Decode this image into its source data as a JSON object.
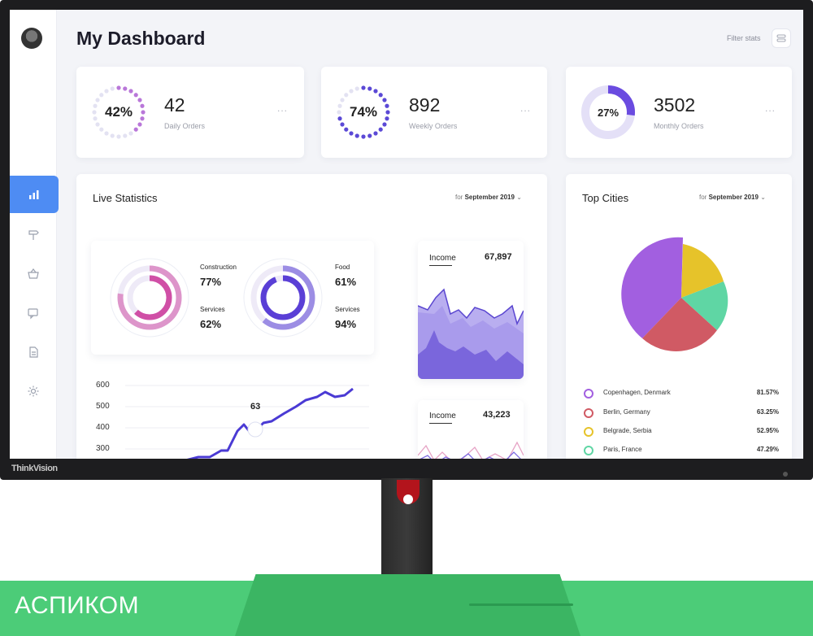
{
  "dashboard": {
    "title": "My Dashboard",
    "filter_label": "Filter stats"
  },
  "sidebar": {
    "items": [
      {
        "icon": "bar-chart-icon",
        "active": true
      },
      {
        "icon": "signpost-icon",
        "active": false
      },
      {
        "icon": "basket-icon",
        "active": false
      },
      {
        "icon": "chat-icon",
        "active": false
      },
      {
        "icon": "document-icon",
        "active": false
      },
      {
        "icon": "gear-icon",
        "active": false
      }
    ]
  },
  "stats": [
    {
      "percent_label": "42%",
      "percent": 42,
      "value": "42",
      "label": "Daily Orders",
      "color": "#b977d9",
      "style": "dots"
    },
    {
      "percent_label": "74%",
      "percent": 74,
      "value": "892",
      "label": "Weekly Orders",
      "color": "#5b49d6",
      "style": "dots"
    },
    {
      "percent_label": "27%",
      "percent": 27,
      "value": "3502",
      "label": "Monthly Orders",
      "color": "#6a4be0",
      "style": "donut"
    }
  ],
  "stat_more_label": "...",
  "live_statistics": {
    "title": "Live Statistics",
    "filter_prefix": "for",
    "filter_value": "September 2019",
    "filter_caret": "⌄",
    "rings": [
      {
        "label_a": "Construction",
        "value_a": "77%",
        "label_b": "Services",
        "value_b": "62%",
        "color": "#d04fa6",
        "outer": 77,
        "inner": 62
      },
      {
        "label_a": "Food",
        "value_a": "61%",
        "label_b": "Services",
        "value_b": "94%",
        "color": "#5a3fd6",
        "outer": 61,
        "inner": 94
      }
    ],
    "income_cards": [
      {
        "label": "Income",
        "value": "67,897"
      },
      {
        "label": "Income",
        "value": "43,223"
      }
    ],
    "line_chart": {
      "y_ticks": [
        "600",
        "500",
        "400",
        "300"
      ],
      "highlight_label": "63",
      "color": "#4a3ad4"
    }
  },
  "top_cities": {
    "title": "Top Cities",
    "filter_prefix": "for",
    "filter_value": "September 2019",
    "filter_caret": "⌄",
    "cities": [
      {
        "name": "Copenhagen, Denmark",
        "pct": "81.57%",
        "color": "#a25fe0"
      },
      {
        "name": "Berlin, Germany",
        "pct": "63.25%",
        "color": "#d05a64"
      },
      {
        "name": "Belgrade, Serbia",
        "pct": "52.95%",
        "color": "#e6c32a"
      },
      {
        "name": "Paris, France",
        "pct": "47.29%",
        "color": "#5fd6a4"
      }
    ]
  },
  "hardware": {
    "brand_logo": "ThinkVision",
    "caption": "АСПИКОМ"
  }
}
